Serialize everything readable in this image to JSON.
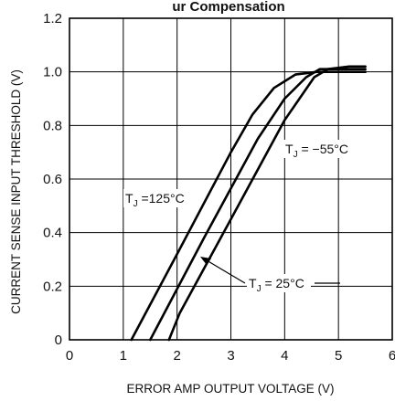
{
  "chart_data": {
    "type": "line",
    "title_visible": "ur Compensation",
    "xlabel": "ERROR AMP OUTPUT VOLTAGE (V)",
    "ylabel": "CURRENT SENSE INPUT THRESHOLD (V)",
    "xlim": [
      0,
      6
    ],
    "ylim": [
      0,
      1.2
    ],
    "x_ticks": [
      "0",
      "1",
      "2",
      "3",
      "4",
      "5",
      "6"
    ],
    "y_ticks": [
      "0",
      "0.2",
      "0.4",
      "0.6",
      "0.8",
      "1.0",
      "1.2"
    ],
    "grid": true,
    "series": [
      {
        "name": "TJ = 125°C",
        "x": [
          1.15,
          2.0,
          3.0,
          3.4,
          3.8,
          4.2,
          4.6,
          5.0,
          5.5
        ],
        "y": [
          0.0,
          0.32,
          0.7,
          0.84,
          0.94,
          0.99,
          1.0,
          1.0,
          1.0
        ]
      },
      {
        "name": "TJ = 25°C",
        "x": [
          1.5,
          2.5,
          3.5,
          4.0,
          4.4,
          4.65,
          5.0,
          5.5
        ],
        "y": [
          0.0,
          0.38,
          0.75,
          0.9,
          0.98,
          1.01,
          1.01,
          1.01
        ]
      },
      {
        "name": "TJ = −55°C",
        "x": [
          1.85,
          2.05,
          3.0,
          4.0,
          4.55,
          4.8,
          5.2,
          5.5
        ],
        "y": [
          0.0,
          0.1,
          0.45,
          0.82,
          0.98,
          1.01,
          1.02,
          1.02
        ]
      }
    ],
    "annotations": [
      {
        "sub": "J",
        "pre": "T",
        "mid": " =125°C"
      },
      {
        "sub": "J",
        "pre": "T",
        "mid": " = 25°C"
      },
      {
        "sub": "J",
        "pre": "T",
        "mid": " = −55°C"
      }
    ],
    "line_color": "#000000"
  }
}
